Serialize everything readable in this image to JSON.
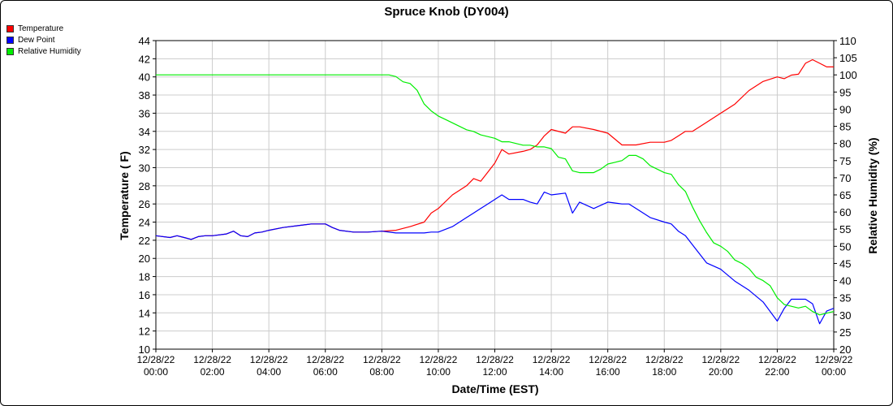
{
  "chart_data": {
    "type": "line",
    "title": "Spruce Knob (DY004)",
    "xlabel": "Date/Time (EST)",
    "ylabel_left": "Temperature ( F)",
    "ylabel_right": "Relative Humidity (%)",
    "ylim_left": [
      10,
      44
    ],
    "ylim_right": [
      20,
      110
    ],
    "xlim_hours": [
      0,
      24
    ],
    "grid": true,
    "legend_position": "top-left",
    "x_ticks": [
      {
        "hour": 0,
        "line1": "12/28/22",
        "line2": "00:00"
      },
      {
        "hour": 2,
        "line1": "12/28/22",
        "line2": "02:00"
      },
      {
        "hour": 4,
        "line1": "12/28/22",
        "line2": "04:00"
      },
      {
        "hour": 6,
        "line1": "12/28/22",
        "line2": "06:00"
      },
      {
        "hour": 8,
        "line1": "12/28/22",
        "line2": "08:00"
      },
      {
        "hour": 10,
        "line1": "12/28/22",
        "line2": "10:00"
      },
      {
        "hour": 12,
        "line1": "12/28/22",
        "line2": "12:00"
      },
      {
        "hour": 14,
        "line1": "12/28/22",
        "line2": "14:00"
      },
      {
        "hour": 16,
        "line1": "12/28/22",
        "line2": "16:00"
      },
      {
        "hour": 18,
        "line1": "12/28/22",
        "line2": "18:00"
      },
      {
        "hour": 20,
        "line1": "12/28/22",
        "line2": "20:00"
      },
      {
        "hour": 22,
        "line1": "12/28/22",
        "line2": "22:00"
      },
      {
        "hour": 24,
        "line1": "12/29/22",
        "line2": "00:00"
      }
    ],
    "y_ticks_left": [
      10,
      12,
      14,
      16,
      18,
      20,
      22,
      24,
      26,
      28,
      30,
      32,
      34,
      36,
      38,
      40,
      42,
      44
    ],
    "y_ticks_right": [
      20,
      25,
      30,
      35,
      40,
      45,
      50,
      55,
      60,
      65,
      70,
      75,
      80,
      85,
      90,
      95,
      100,
      105,
      110
    ],
    "series": [
      {
        "name": "Temperature",
        "color": "#ff0000",
        "axis": "left",
        "x": [
          0,
          0.5,
          0.75,
          1,
          1.25,
          1.5,
          1.75,
          2,
          2.5,
          2.75,
          3,
          3.25,
          3.5,
          3.75,
          4,
          4.5,
          5,
          5.5,
          6,
          6.25,
          6.5,
          7,
          7.5,
          8,
          8.5,
          9,
          9.5,
          9.75,
          10,
          10.5,
          11,
          11.25,
          11.5,
          11.75,
          12,
          12.25,
          12.5,
          13,
          13.25,
          13.5,
          13.75,
          14,
          14.5,
          14.75,
          15,
          15.5,
          16,
          16.5,
          16.75,
          17,
          17.5,
          18,
          18.25,
          18.5,
          18.75,
          19,
          19.5,
          20,
          20.5,
          21,
          21.5,
          22,
          22.25,
          22.5,
          22.75,
          23,
          23.25,
          23.5,
          23.75,
          24
        ],
        "values": [
          22.5,
          22.3,
          22.5,
          22.3,
          22.1,
          22.4,
          22.5,
          22.5,
          22.7,
          23.0,
          22.5,
          22.4,
          22.8,
          22.9,
          23.1,
          23.4,
          23.6,
          23.8,
          23.8,
          23.4,
          23.1,
          22.9,
          22.9,
          23.0,
          23.1,
          23.5,
          24.0,
          25.0,
          25.5,
          27.0,
          28.0,
          28.8,
          28.5,
          29.5,
          30.5,
          32.0,
          31.5,
          31.8,
          32.0,
          32.5,
          33.5,
          34.2,
          33.8,
          34.5,
          34.5,
          34.2,
          33.8,
          32.5,
          32.5,
          32.5,
          32.8,
          32.8,
          33.0,
          33.5,
          34.0,
          34.0,
          35.0,
          36.0,
          37.0,
          38.5,
          39.5,
          40.0,
          39.8,
          40.2,
          40.3,
          41.5,
          41.9,
          41.5,
          41.1,
          41.1
        ]
      },
      {
        "name": "Dew Point",
        "color": "#0000ff",
        "axis": "left",
        "x": [
          0,
          0.5,
          0.75,
          1,
          1.25,
          1.5,
          1.75,
          2,
          2.5,
          2.75,
          3,
          3.25,
          3.5,
          3.75,
          4,
          4.5,
          5,
          5.5,
          6,
          6.25,
          6.5,
          7,
          7.5,
          8,
          8.5,
          9,
          9.5,
          9.75,
          10,
          10.5,
          11,
          11.25,
          11.5,
          11.75,
          12,
          12.25,
          12.5,
          13,
          13.25,
          13.5,
          13.75,
          14,
          14.5,
          14.75,
          15,
          15.5,
          16,
          16.5,
          16.75,
          17,
          17.5,
          18,
          18.25,
          18.5,
          18.75,
          19,
          19.5,
          20,
          20.5,
          21,
          21.5,
          22,
          22.25,
          22.5,
          22.75,
          23,
          23.25,
          23.5,
          23.75,
          24
        ],
        "values": [
          22.5,
          22.3,
          22.5,
          22.3,
          22.1,
          22.4,
          22.5,
          22.5,
          22.7,
          23.0,
          22.5,
          22.4,
          22.8,
          22.9,
          23.1,
          23.4,
          23.6,
          23.8,
          23.8,
          23.4,
          23.1,
          22.9,
          22.9,
          23.0,
          22.8,
          22.8,
          22.8,
          22.9,
          22.9,
          23.5,
          24.5,
          25.0,
          25.5,
          26.0,
          26.5,
          27.0,
          26.5,
          26.5,
          26.2,
          26.0,
          27.3,
          27.0,
          27.2,
          25.0,
          26.2,
          25.5,
          26.2,
          26.0,
          26.0,
          25.5,
          24.5,
          24.0,
          23.8,
          23.0,
          22.5,
          21.5,
          19.5,
          18.8,
          17.5,
          16.5,
          15.2,
          13.1,
          14.5,
          15.5,
          15.5,
          15.5,
          15.0,
          12.8,
          14.2,
          14.5
        ]
      },
      {
        "name": "Relative Humidity",
        "color": "#00ee00",
        "axis": "right",
        "x": [
          0,
          1,
          2,
          3,
          4,
          5,
          6,
          7,
          8,
          8.25,
          8.5,
          8.75,
          9,
          9.25,
          9.5,
          9.75,
          10,
          10.25,
          10.5,
          10.75,
          11,
          11.25,
          11.5,
          11.75,
          12,
          12.25,
          12.5,
          12.75,
          13,
          13.25,
          13.5,
          13.75,
          14,
          14.25,
          14.5,
          14.75,
          15,
          15.25,
          15.5,
          15.75,
          16,
          16.25,
          16.5,
          16.75,
          17,
          17.25,
          17.5,
          17.75,
          18,
          18.25,
          18.5,
          18.75,
          19,
          19.25,
          19.5,
          19.75,
          20,
          20.25,
          20.5,
          20.75,
          21,
          21.25,
          21.5,
          21.75,
          22,
          22.25,
          22.5,
          22.75,
          23,
          23.25,
          23.5,
          23.75,
          24
        ],
        "values": [
          100,
          100,
          100,
          100,
          100,
          100,
          100,
          100,
          100,
          100,
          99.5,
          98,
          97.5,
          95.5,
          91.5,
          89.5,
          88,
          87,
          86,
          85,
          84,
          83.5,
          82.5,
          82,
          81.5,
          80.5,
          80.5,
          80,
          79.5,
          79.5,
          79,
          79,
          78.5,
          76,
          75.5,
          72,
          71.5,
          71.5,
          71.5,
          72.5,
          74,
          74.5,
          75,
          76.5,
          76.5,
          75.5,
          73.5,
          72.5,
          71.5,
          71,
          68,
          66,
          61.5,
          57.5,
          54,
          51,
          50,
          48.5,
          46,
          45,
          43.5,
          41,
          40,
          38.5,
          35,
          33,
          32.5,
          32,
          32.5,
          31,
          30,
          30.5,
          31
        ]
      }
    ]
  }
}
